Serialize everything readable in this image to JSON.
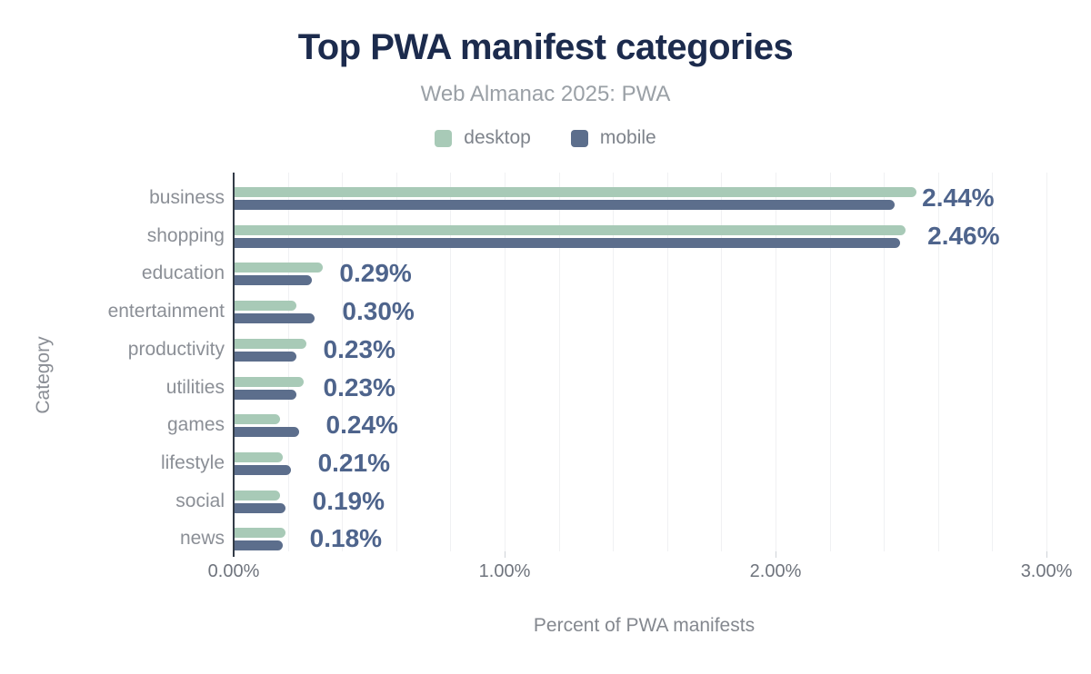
{
  "chart_data": {
    "type": "bar",
    "orientation": "horizontal",
    "title": "Top PWA manifest categories",
    "subtitle": "Web Almanac 2025: PWA",
    "xlabel": "Percent of PWA manifests",
    "ylabel": "Category",
    "xlim": [
      0,
      3.03
    ],
    "grid": true,
    "grid_interval": 0.2,
    "legend_position": "top",
    "x_ticks": [
      {
        "value": 0,
        "label": "0.00%"
      },
      {
        "value": 1,
        "label": "1.00%"
      },
      {
        "value": 2,
        "label": "2.00%"
      },
      {
        "value": 3,
        "label": "3.00%"
      }
    ],
    "categories": [
      "business",
      "shopping",
      "education",
      "entertainment",
      "productivity",
      "utilities",
      "games",
      "lifestyle",
      "social",
      "news"
    ],
    "series": [
      {
        "name": "desktop",
        "color": "#a8cab7",
        "values": [
          2.52,
          2.48,
          0.33,
          0.23,
          0.27,
          0.26,
          0.17,
          0.18,
          0.17,
          0.19
        ]
      },
      {
        "name": "mobile",
        "color": "#5c6e8c",
        "values": [
          2.44,
          2.46,
          0.29,
          0.3,
          0.23,
          0.23,
          0.24,
          0.21,
          0.19,
          0.18
        ]
      }
    ],
    "data_labels": {
      "series": "mobile",
      "values": [
        "2.44%",
        "2.46%",
        "0.29%",
        "0.30%",
        "0.23%",
        "0.23%",
        "0.24%",
        "0.21%",
        "0.19%",
        "0.18%"
      ]
    }
  },
  "colors": {
    "background": "#ffffff",
    "title": "#1c2b4d",
    "subtitle": "#9aa0a6",
    "legend_label": "#7e838b",
    "category_label": "#8b8f96",
    "axis_title": "#84888f",
    "tick_label": "#6f747d",
    "axis_line": "#333b47",
    "gridline": "#f0f1f3",
    "data_label": "#4e648c",
    "desktop_bar": "#a8cab7",
    "mobile_bar": "#5c6e8c"
  }
}
